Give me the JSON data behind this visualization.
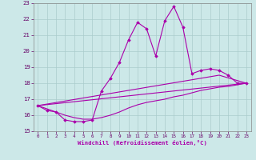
{
  "xlabel": "Windchill (Refroidissement éolien,°C)",
  "bg_color": "#cce8e8",
  "grid_color": "#aacccc",
  "line_color": "#aa00aa",
  "xlim": [
    -0.5,
    23.5
  ],
  "ylim": [
    15,
    23
  ],
  "yticks": [
    15,
    16,
    17,
    18,
    19,
    20,
    21,
    22,
    23
  ],
  "xticks": [
    0,
    1,
    2,
    3,
    4,
    5,
    6,
    7,
    8,
    9,
    10,
    11,
    12,
    13,
    14,
    15,
    16,
    17,
    18,
    19,
    20,
    21,
    22,
    23
  ],
  "main_x": [
    0,
    1,
    2,
    3,
    4,
    5,
    6,
    7,
    8,
    9,
    10,
    11,
    12,
    13,
    14,
    15,
    16,
    17,
    18,
    19,
    20,
    21,
    22,
    23
  ],
  "main_y": [
    16.6,
    16.3,
    16.2,
    15.7,
    15.6,
    15.6,
    15.7,
    17.5,
    18.3,
    19.3,
    20.7,
    21.8,
    21.4,
    19.7,
    21.9,
    22.8,
    21.5,
    18.6,
    18.8,
    18.9,
    18.8,
    18.5,
    18.0,
    18.0
  ],
  "line2_x": [
    0,
    23
  ],
  "line2_y": [
    16.6,
    18.0
  ],
  "line3_x": [
    0,
    20,
    23
  ],
  "line3_y": [
    16.6,
    18.5,
    18.0
  ],
  "line4_x": [
    0,
    3,
    4,
    5,
    6,
    7,
    8,
    9,
    10,
    11,
    12,
    13,
    14,
    15,
    16,
    17,
    18,
    19,
    20,
    21,
    22,
    23
  ],
  "line4_y": [
    16.6,
    16.0,
    15.85,
    15.75,
    15.75,
    15.85,
    16.0,
    16.2,
    16.45,
    16.65,
    16.8,
    16.9,
    17.0,
    17.15,
    17.25,
    17.4,
    17.55,
    17.65,
    17.75,
    17.8,
    17.9,
    18.0
  ]
}
